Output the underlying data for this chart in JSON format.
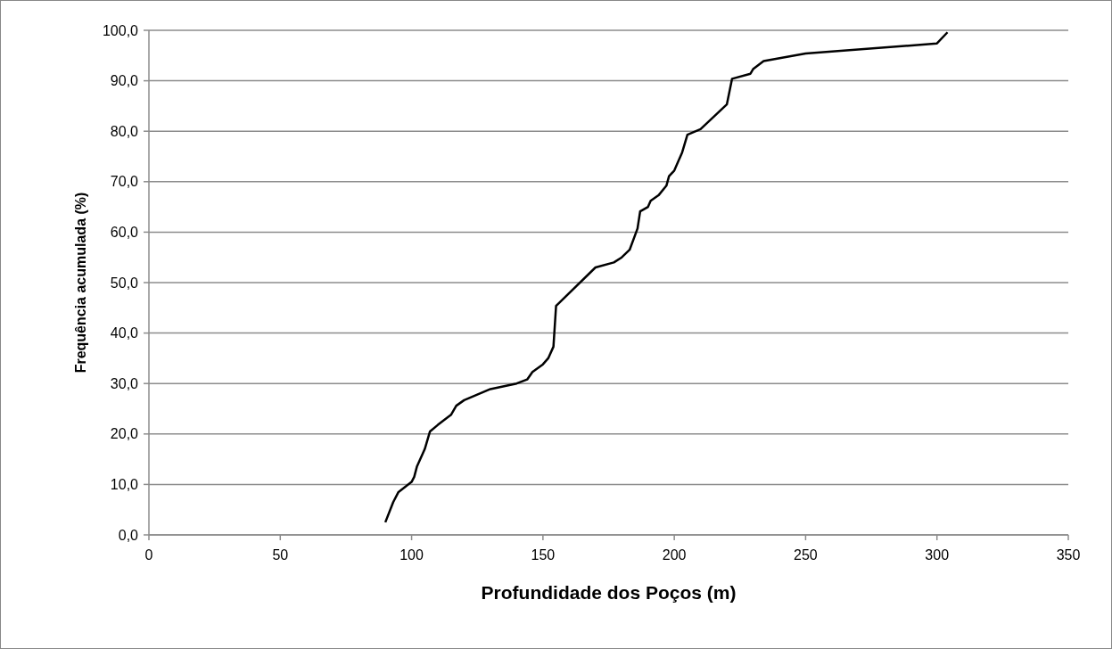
{
  "chart_data": {
    "type": "line",
    "xlabel": "Profundidade dos Poços (m)",
    "ylabel": "Frequência acumulada (%)",
    "xlim": [
      0,
      350
    ],
    "xticks": [
      0,
      50,
      100,
      150,
      200,
      250,
      300,
      350
    ],
    "ylim": [
      0,
      100
    ],
    "yticks": [
      {
        "value": 0,
        "label": "0,0"
      },
      {
        "value": 10,
        "label": "10,0"
      },
      {
        "value": 20,
        "label": "20,0"
      },
      {
        "value": 30,
        "label": "30,0"
      },
      {
        "value": 40,
        "label": "40,0"
      },
      {
        "value": 50,
        "label": "50,0"
      },
      {
        "value": 60,
        "label": "60,0"
      },
      {
        "value": 70,
        "label": "70,0"
      },
      {
        "value": 80,
        "label": "80,0"
      },
      {
        "value": 90,
        "label": "90,0"
      },
      {
        "value": 100,
        "label": "100,0"
      }
    ],
    "grid": "y",
    "marker": "none",
    "line_style": "solid",
    "series": [
      {
        "color": "#000000",
        "x": [
          90,
          93,
          95,
          100,
          101,
          102,
          105,
          107,
          110,
          113,
          115,
          117,
          120,
          125,
          130,
          140,
          144,
          146,
          150,
          152,
          154,
          155,
          170,
          177,
          180,
          183,
          186,
          187,
          190,
          191,
          194,
          197,
          198,
          200,
          203,
          205,
          210,
          220,
          222,
          229,
          230,
          234,
          250,
          300,
          304
        ],
        "values": [
          2.5,
          6.5,
          8.5,
          10.5,
          11.5,
          13.5,
          17,
          20.5,
          21.8,
          23,
          23.8,
          25.6,
          26.7,
          27.8,
          28.9,
          30,
          30.8,
          32.3,
          33.8,
          35,
          37.3,
          45.4,
          53,
          54,
          55,
          56.5,
          60.7,
          64.1,
          65,
          66.2,
          67.3,
          69.2,
          71.1,
          72.2,
          75.8,
          79.3,
          80.4,
          85.3,
          90.4,
          91.4,
          92.3,
          93.9,
          95.4,
          97.4,
          99.6
        ]
      }
    ]
  }
}
